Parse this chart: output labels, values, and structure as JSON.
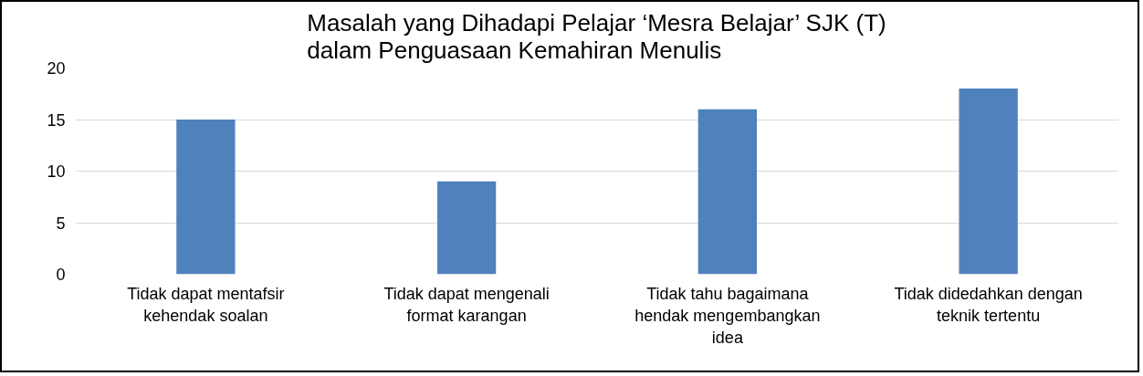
{
  "chart_data": {
    "type": "bar",
    "title": "Masalah yang Dihadapi Pelajar ‘Mesra Belajar’ SJK (T) dalam Penguasaan Kemahiran Menulis",
    "categories": [
      "Tidak dapat mentafsir kehendak soalan",
      "Tidak dapat mengenali format karangan",
      "Tidak tahu bagaimana hendak mengembangkan idea",
      "Tidak didedahkan dengan teknik tertentu"
    ],
    "values": [
      15,
      9,
      16,
      18
    ],
    "color": "#4f81bd",
    "ylim": [
      0,
      20
    ],
    "yticks": [
      0,
      5,
      10,
      15,
      20
    ],
    "grid": "y"
  }
}
